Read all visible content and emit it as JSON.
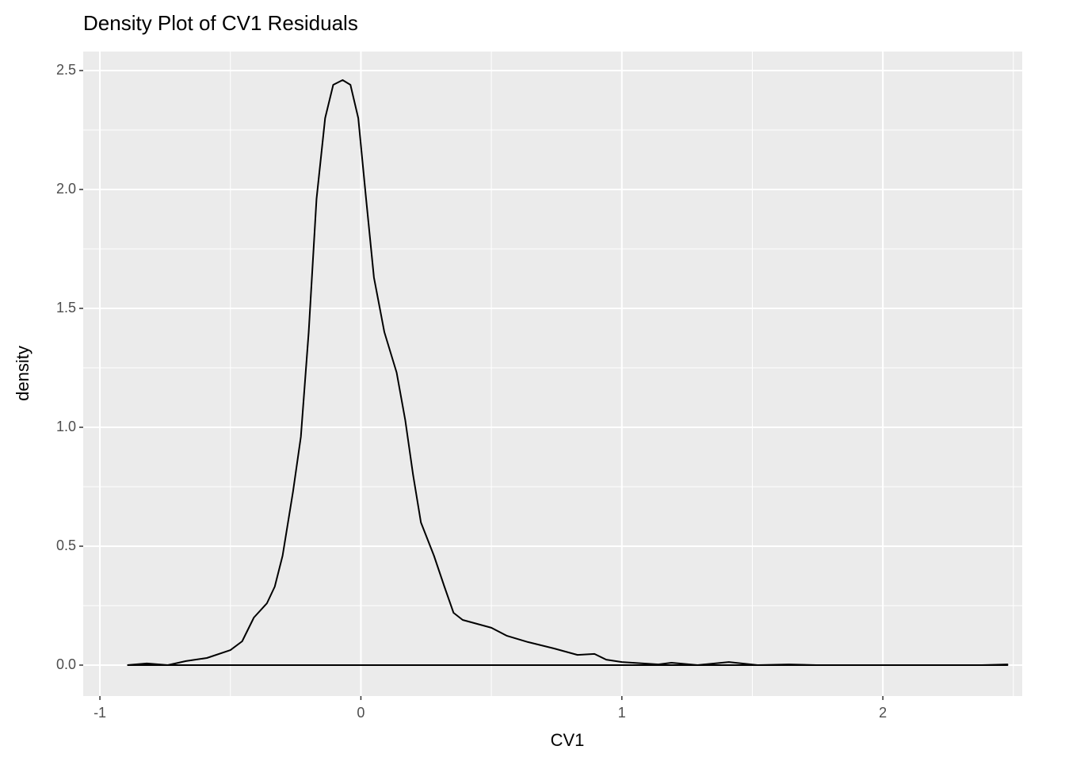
{
  "chart_data": {
    "type": "density",
    "title": "Density Plot of CV1 Residuals",
    "x_label": "CV1",
    "y_label": "density",
    "x": [
      -0.895,
      -0.82,
      -0.74,
      -0.67,
      -0.59,
      -0.5,
      -0.455,
      -0.41,
      -0.36,
      -0.33,
      -0.3,
      -0.26,
      -0.23,
      -0.2,
      -0.17,
      -0.137,
      -0.106,
      -0.07,
      -0.04,
      -0.01,
      0.02,
      0.05,
      0.09,
      0.137,
      0.17,
      0.2,
      0.23,
      0.28,
      0.32,
      0.355,
      0.39,
      0.5,
      0.56,
      0.64,
      0.74,
      0.83,
      0.895,
      0.94,
      1.0,
      1.14,
      1.19,
      1.29,
      1.41,
      1.52,
      1.64,
      1.745,
      2.38,
      2.48
    ],
    "values": [
      0,
      0.007,
      0,
      0.017,
      0.03,
      0.063,
      0.1,
      0.2,
      0.26,
      0.33,
      0.46,
      0.73,
      0.96,
      1.4,
      1.96,
      2.3,
      2.44,
      2.46,
      2.44,
      2.3,
      1.96,
      1.63,
      1.4,
      1.23,
      1.03,
      0.8,
      0.6,
      0.46,
      0.33,
      0.22,
      0.19,
      0.157,
      0.123,
      0.097,
      0.07,
      0.043,
      0.047,
      0.023,
      0.013,
      0.003,
      0.01,
      0,
      0.013,
      0,
      0.003,
      0,
      0,
      0.003
    ],
    "color": "#000000",
    "xlim": [
      -1.064,
      2.534
    ],
    "xticks": [
      -1,
      0,
      1,
      2
    ],
    "ylim": [
      -0.13,
      2.58
    ],
    "yticks": [
      {
        "value": 0,
        "label": "0.0"
      },
      0.5,
      {
        "value": 1,
        "label": "1.0"
      },
      1.5,
      {
        "value": 2,
        "label": "2.0"
      },
      2.5
    ],
    "grid": true
  }
}
